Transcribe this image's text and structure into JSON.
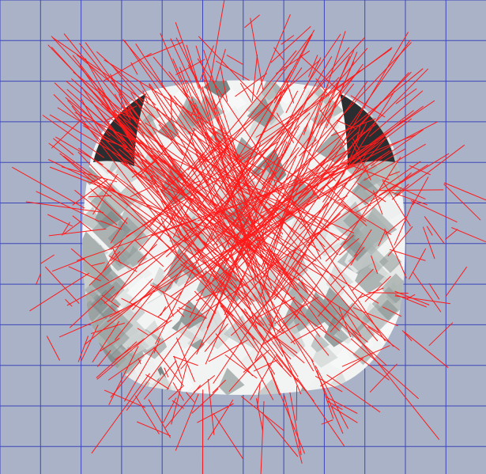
{
  "viewport": {
    "background_color": "#a9b2c7",
    "grid_color": "#3d46b8",
    "gem_fill_light": "#f2f4f3",
    "gem_fill_mid": "#b9c2c2",
    "gem_fill_dark": "#2b2e31",
    "ray_color": "#ff1a1a"
  }
}
